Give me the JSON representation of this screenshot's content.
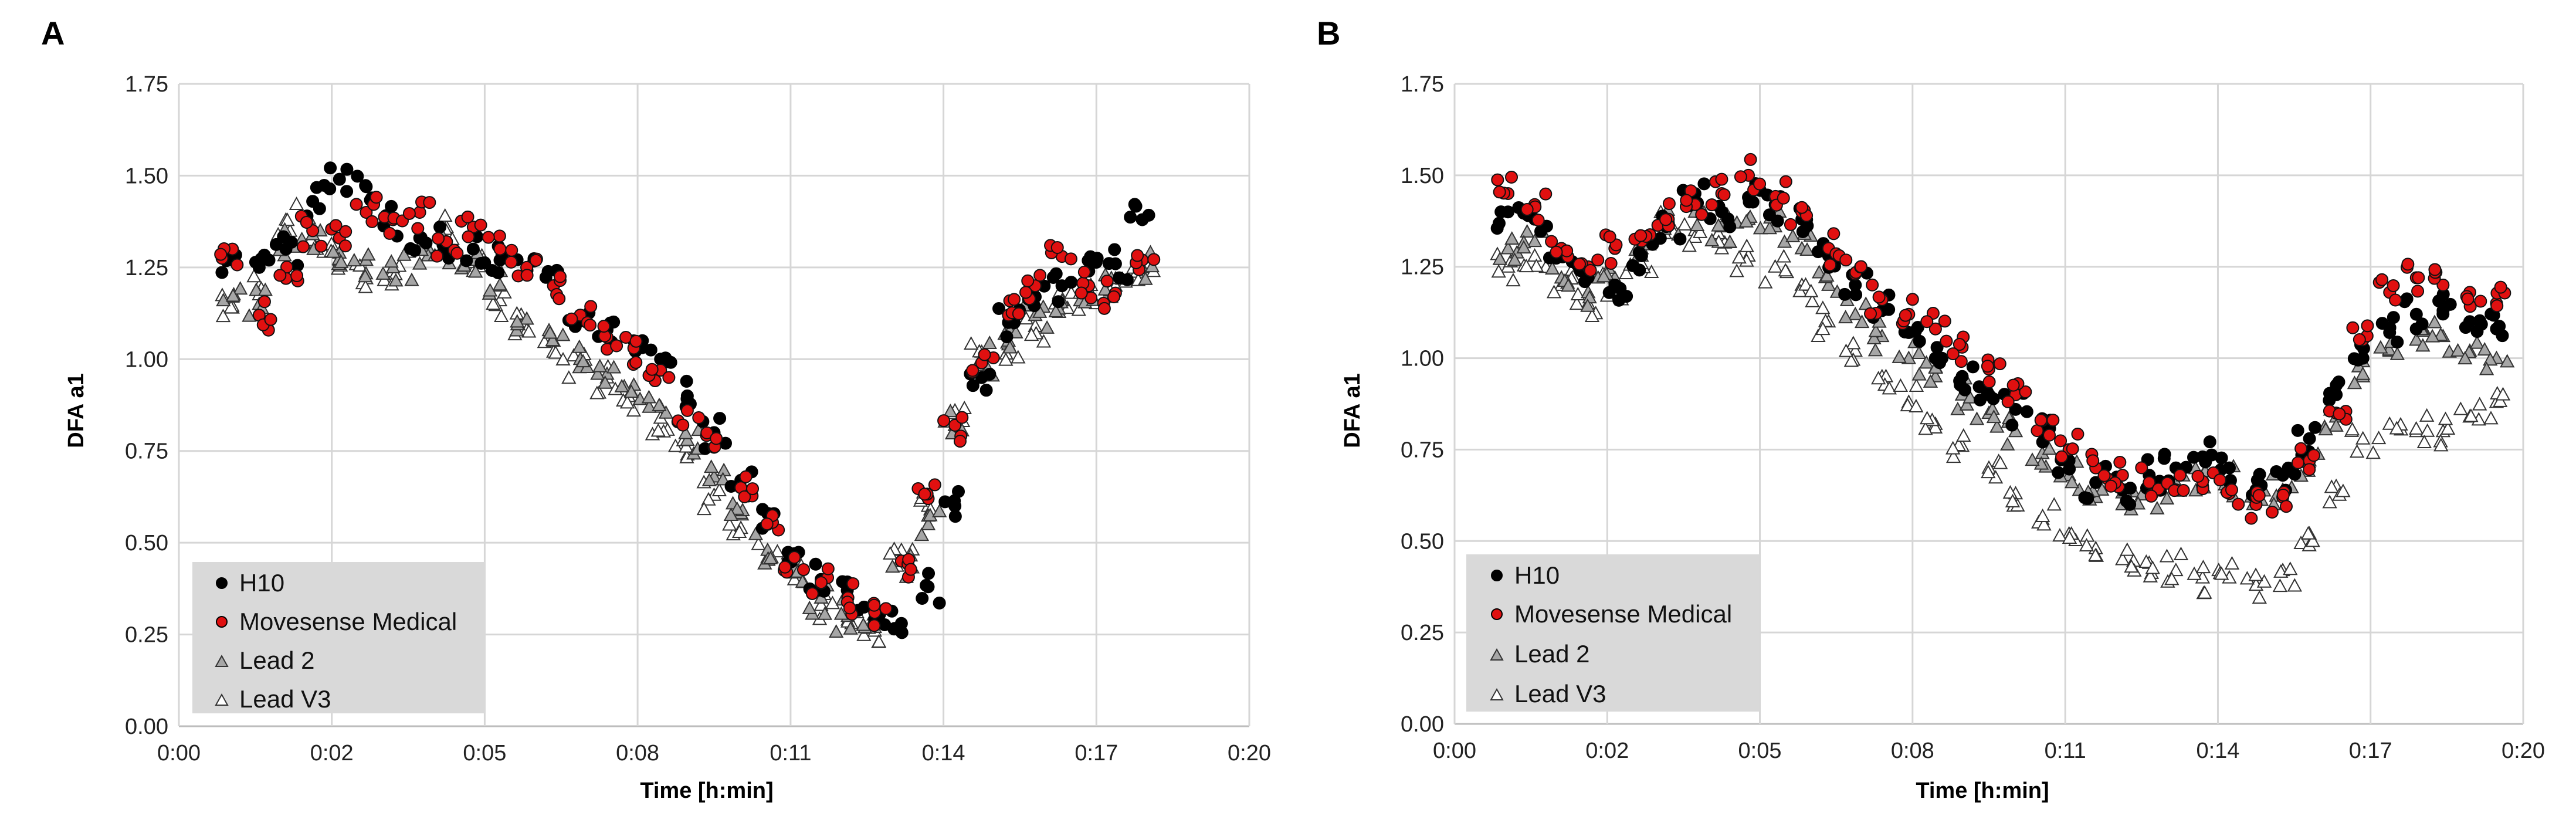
{
  "figure": {
    "panels": [
      "A",
      "B"
    ],
    "legend": {
      "items": [
        {
          "label": "H10",
          "marker": "circle",
          "color": "#000000"
        },
        {
          "label": "Movesense Medical",
          "marker": "circle",
          "color": "#e01010"
        },
        {
          "label": "Lead 2",
          "marker": "triangle",
          "color": "#a6a6a6"
        },
        {
          "label": "Lead V3",
          "marker": "triangle",
          "color": "#ffffff"
        }
      ]
    }
  },
  "chart_data": [
    {
      "panel": "A",
      "type": "scatter",
      "xlabel": "Time [h:min]",
      "ylabel": "DFA a1",
      "xlim": [
        0,
        20
      ],
      "ylim": [
        0,
        1.75
      ],
      "x_ticks": [
        "0:00",
        "0:02",
        "0:05",
        "0:08",
        "0:11",
        "0:14",
        "0:17",
        "0:20"
      ],
      "x_tick_values": [
        0,
        2.857,
        5.714,
        8.571,
        11.429,
        14.286,
        17.143,
        20
      ],
      "y_ticks": [
        "0.00",
        "0.25",
        "0.50",
        "0.75",
        "1.00",
        "1.25",
        "1.50",
        "1.75"
      ],
      "y_tick_values": [
        0,
        0.25,
        0.5,
        0.75,
        1.0,
        1.25,
        1.5,
        1.75
      ],
      "grid": true,
      "legend_position": "bottom-left",
      "series": [
        {
          "name": "H10",
          "x": [
            1.0,
            1.5,
            2.0,
            2.5,
            3.0,
            3.5,
            4.0,
            4.5,
            5.0,
            5.5,
            6.0,
            6.5,
            7.0,
            7.5,
            8.0,
            8.5,
            9.0,
            9.5,
            10.0,
            10.5,
            11.0,
            11.5,
            12.0,
            12.5,
            13.0,
            13.5,
            14.0,
            14.5,
            15.0,
            15.5,
            16.0,
            16.5,
            17.0,
            17.5,
            18.0
          ],
          "y": [
            1.27,
            1.25,
            1.3,
            1.43,
            1.49,
            1.47,
            1.38,
            1.33,
            1.32,
            1.3,
            1.27,
            1.25,
            1.2,
            1.12,
            1.08,
            1.05,
            1.0,
            0.9,
            0.8,
            0.67,
            0.58,
            0.47,
            0.4,
            0.35,
            0.29,
            0.28,
            0.38,
            0.6,
            0.95,
            1.1,
            1.17,
            1.2,
            1.24,
            1.26,
            1.38
          ]
        },
        {
          "name": "Movesense Medical",
          "x": [
            1.0,
            1.5,
            2.0,
            2.5,
            3.0,
            3.5,
            4.0,
            4.5,
            5.0,
            5.5,
            6.0,
            6.5,
            7.0,
            7.5,
            8.0,
            8.5,
            9.0,
            9.5,
            10.0,
            10.5,
            11.0,
            11.5,
            12.0,
            12.5,
            13.0,
            13.5,
            14.0,
            14.5,
            15.0,
            15.5,
            16.0,
            16.5,
            17.0,
            17.5,
            18.0
          ],
          "y": [
            1.3,
            1.12,
            1.22,
            1.35,
            1.33,
            1.4,
            1.38,
            1.4,
            1.32,
            1.36,
            1.3,
            1.25,
            1.2,
            1.12,
            1.06,
            1.03,
            0.97,
            0.86,
            0.76,
            0.65,
            0.55,
            0.46,
            0.39,
            0.35,
            0.31,
            0.45,
            0.62,
            0.82,
            0.99,
            1.12,
            1.2,
            1.28,
            1.2,
            1.18,
            1.27
          ]
        },
        {
          "name": "Lead 2",
          "x": [
            1.0,
            1.5,
            2.0,
            2.5,
            3.0,
            3.5,
            4.0,
            4.5,
            5.0,
            5.5,
            6.0,
            6.5,
            7.0,
            7.5,
            8.0,
            8.5,
            9.0,
            9.5,
            10.0,
            10.5,
            11.0,
            11.5,
            12.0,
            12.5,
            13.0,
            13.5,
            14.0,
            14.5,
            15.0,
            15.5,
            16.0,
            16.5,
            17.0,
            17.5,
            18.0
          ],
          "y": [
            1.17,
            1.15,
            1.32,
            1.34,
            1.29,
            1.27,
            1.25,
            1.26,
            1.3,
            1.27,
            1.2,
            1.11,
            1.05,
            1.0,
            0.96,
            0.93,
            0.87,
            0.78,
            0.68,
            0.58,
            0.48,
            0.43,
            0.35,
            0.3,
            0.27,
            0.45,
            0.55,
            0.82,
            1.0,
            1.05,
            1.12,
            1.16,
            1.19,
            1.22,
            1.25
          ]
        },
        {
          "name": "Lead V3",
          "x": [
            1.0,
            1.5,
            2.0,
            2.5,
            3.0,
            3.5,
            4.0,
            4.5,
            5.0,
            5.5,
            6.0,
            6.5,
            7.0,
            7.5,
            8.0,
            8.5,
            9.0,
            9.5,
            10.0,
            10.5,
            11.0,
            11.5,
            12.0,
            12.5,
            13.0,
            13.5,
            14.0,
            14.5,
            15.0,
            15.5,
            16.0,
            16.5,
            17.0,
            17.5,
            18.0
          ],
          "y": [
            1.14,
            1.2,
            1.38,
            1.32,
            1.27,
            1.22,
            1.24,
            1.3,
            1.36,
            1.24,
            1.16,
            1.08,
            1.02,
            0.98,
            0.95,
            0.9,
            0.84,
            0.74,
            0.63,
            0.54,
            0.46,
            0.4,
            0.33,
            0.29,
            0.26,
            0.48,
            0.6,
            0.86,
            1.02,
            1.04,
            1.09,
            1.14,
            1.16,
            1.2,
            1.23
          ]
        }
      ]
    },
    {
      "panel": "B",
      "type": "scatter",
      "xlabel": "Time [h:min]",
      "ylabel": "DFA a1",
      "xlim": [
        0,
        20
      ],
      "ylim": [
        0,
        1.75
      ],
      "x_ticks": [
        "0:00",
        "0:02",
        "0:05",
        "0:08",
        "0:11",
        "0:14",
        "0:17",
        "0:20"
      ],
      "x_tick_values": [
        0,
        2.857,
        5.714,
        8.571,
        11.429,
        14.286,
        17.143,
        20
      ],
      "y_ticks": [
        "0.00",
        "0.25",
        "0.50",
        "0.75",
        "1.00",
        "1.25",
        "1.50",
        "1.75"
      ],
      "y_tick_values": [
        0,
        0.25,
        0.5,
        0.75,
        1.0,
        1.25,
        1.5,
        1.75
      ],
      "grid": true,
      "legend_position": "bottom-left",
      "series": [
        {
          "name": "H10",
          "x": [
            1.0,
            1.5,
            2.0,
            2.5,
            3.0,
            3.5,
            4.0,
            4.5,
            5.0,
            5.5,
            6.0,
            6.5,
            7.0,
            7.5,
            8.0,
            8.5,
            9.0,
            9.5,
            10.0,
            10.5,
            11.0,
            11.5,
            12.0,
            12.5,
            13.0,
            13.5,
            14.0,
            14.5,
            15.0,
            15.5,
            16.0,
            16.5,
            17.0,
            17.5,
            18.0,
            18.5,
            19.0,
            19.5
          ],
          "y": [
            1.4,
            1.38,
            1.28,
            1.22,
            1.2,
            1.28,
            1.37,
            1.45,
            1.4,
            1.44,
            1.42,
            1.38,
            1.28,
            1.2,
            1.13,
            1.07,
            1.0,
            0.95,
            0.9,
            0.86,
            0.8,
            0.72,
            0.66,
            0.64,
            0.68,
            0.7,
            0.73,
            0.7,
            0.64,
            0.68,
            0.78,
            0.9,
            1.0,
            1.07,
            1.12,
            1.13,
            1.1,
            1.08
          ]
        },
        {
          "name": "Movesense Medical",
          "x": [
            1.0,
            1.5,
            2.0,
            2.5,
            3.0,
            3.5,
            4.0,
            4.5,
            5.0,
            5.5,
            6.0,
            6.5,
            7.0,
            7.5,
            8.0,
            8.5,
            9.0,
            9.5,
            10.0,
            10.5,
            11.0,
            11.5,
            12.0,
            12.5,
            13.0,
            13.5,
            14.0,
            14.5,
            15.0,
            15.5,
            16.0,
            16.5,
            17.0,
            17.5,
            18.0,
            18.5,
            19.0,
            19.5
          ],
          "y": [
            1.45,
            1.42,
            1.3,
            1.25,
            1.3,
            1.32,
            1.38,
            1.42,
            1.45,
            1.5,
            1.44,
            1.4,
            1.3,
            1.23,
            1.16,
            1.12,
            1.08,
            1.03,
            0.97,
            0.9,
            0.83,
            0.75,
            0.7,
            0.68,
            0.66,
            0.64,
            0.65,
            0.63,
            0.6,
            0.62,
            0.72,
            0.85,
            1.05,
            1.18,
            1.22,
            1.2,
            1.18,
            1.15
          ]
        },
        {
          "name": "Lead 2",
          "x": [
            1.0,
            1.5,
            2.0,
            2.5,
            3.0,
            3.5,
            4.0,
            4.5,
            5.0,
            5.5,
            6.0,
            6.5,
            7.0,
            7.5,
            8.0,
            8.5,
            9.0,
            9.5,
            10.0,
            10.5,
            11.0,
            11.5,
            12.0,
            12.5,
            13.0,
            13.5,
            14.0,
            14.5,
            15.0,
            15.5,
            16.0,
            16.5,
            17.0,
            17.5,
            18.0,
            18.5,
            19.0,
            19.5
          ],
          "y": [
            1.3,
            1.32,
            1.22,
            1.18,
            1.22,
            1.3,
            1.38,
            1.4,
            1.36,
            1.38,
            1.36,
            1.3,
            1.2,
            1.12,
            1.06,
            1.0,
            0.95,
            0.9,
            0.85,
            0.8,
            0.74,
            0.68,
            0.62,
            0.6,
            0.63,
            0.66,
            0.68,
            0.66,
            0.62,
            0.64,
            0.72,
            0.84,
            0.95,
            1.02,
            1.05,
            1.06,
            1.02,
            1.0
          ]
        },
        {
          "name": "Lead V3",
          "x": [
            1.0,
            1.5,
            2.0,
            2.5,
            3.0,
            3.5,
            4.0,
            4.5,
            5.0,
            5.5,
            6.0,
            6.5,
            7.0,
            7.5,
            8.0,
            8.5,
            9.0,
            9.5,
            10.0,
            10.5,
            11.0,
            11.5,
            12.0,
            12.5,
            13.0,
            13.5,
            14.0,
            14.5,
            15.0,
            15.5,
            16.0,
            16.5,
            17.0,
            17.5,
            18.0,
            18.5,
            19.0,
            19.5
          ],
          "y": [
            1.25,
            1.28,
            1.2,
            1.15,
            1.2,
            1.28,
            1.36,
            1.35,
            1.3,
            1.28,
            1.25,
            1.2,
            1.1,
            1.02,
            0.95,
            0.88,
            0.82,
            0.76,
            0.7,
            0.63,
            0.56,
            0.52,
            0.48,
            0.45,
            0.44,
            0.42,
            0.4,
            0.4,
            0.38,
            0.42,
            0.52,
            0.65,
            0.78,
            0.82,
            0.8,
            0.8,
            0.84,
            0.88
          ]
        }
      ]
    }
  ]
}
